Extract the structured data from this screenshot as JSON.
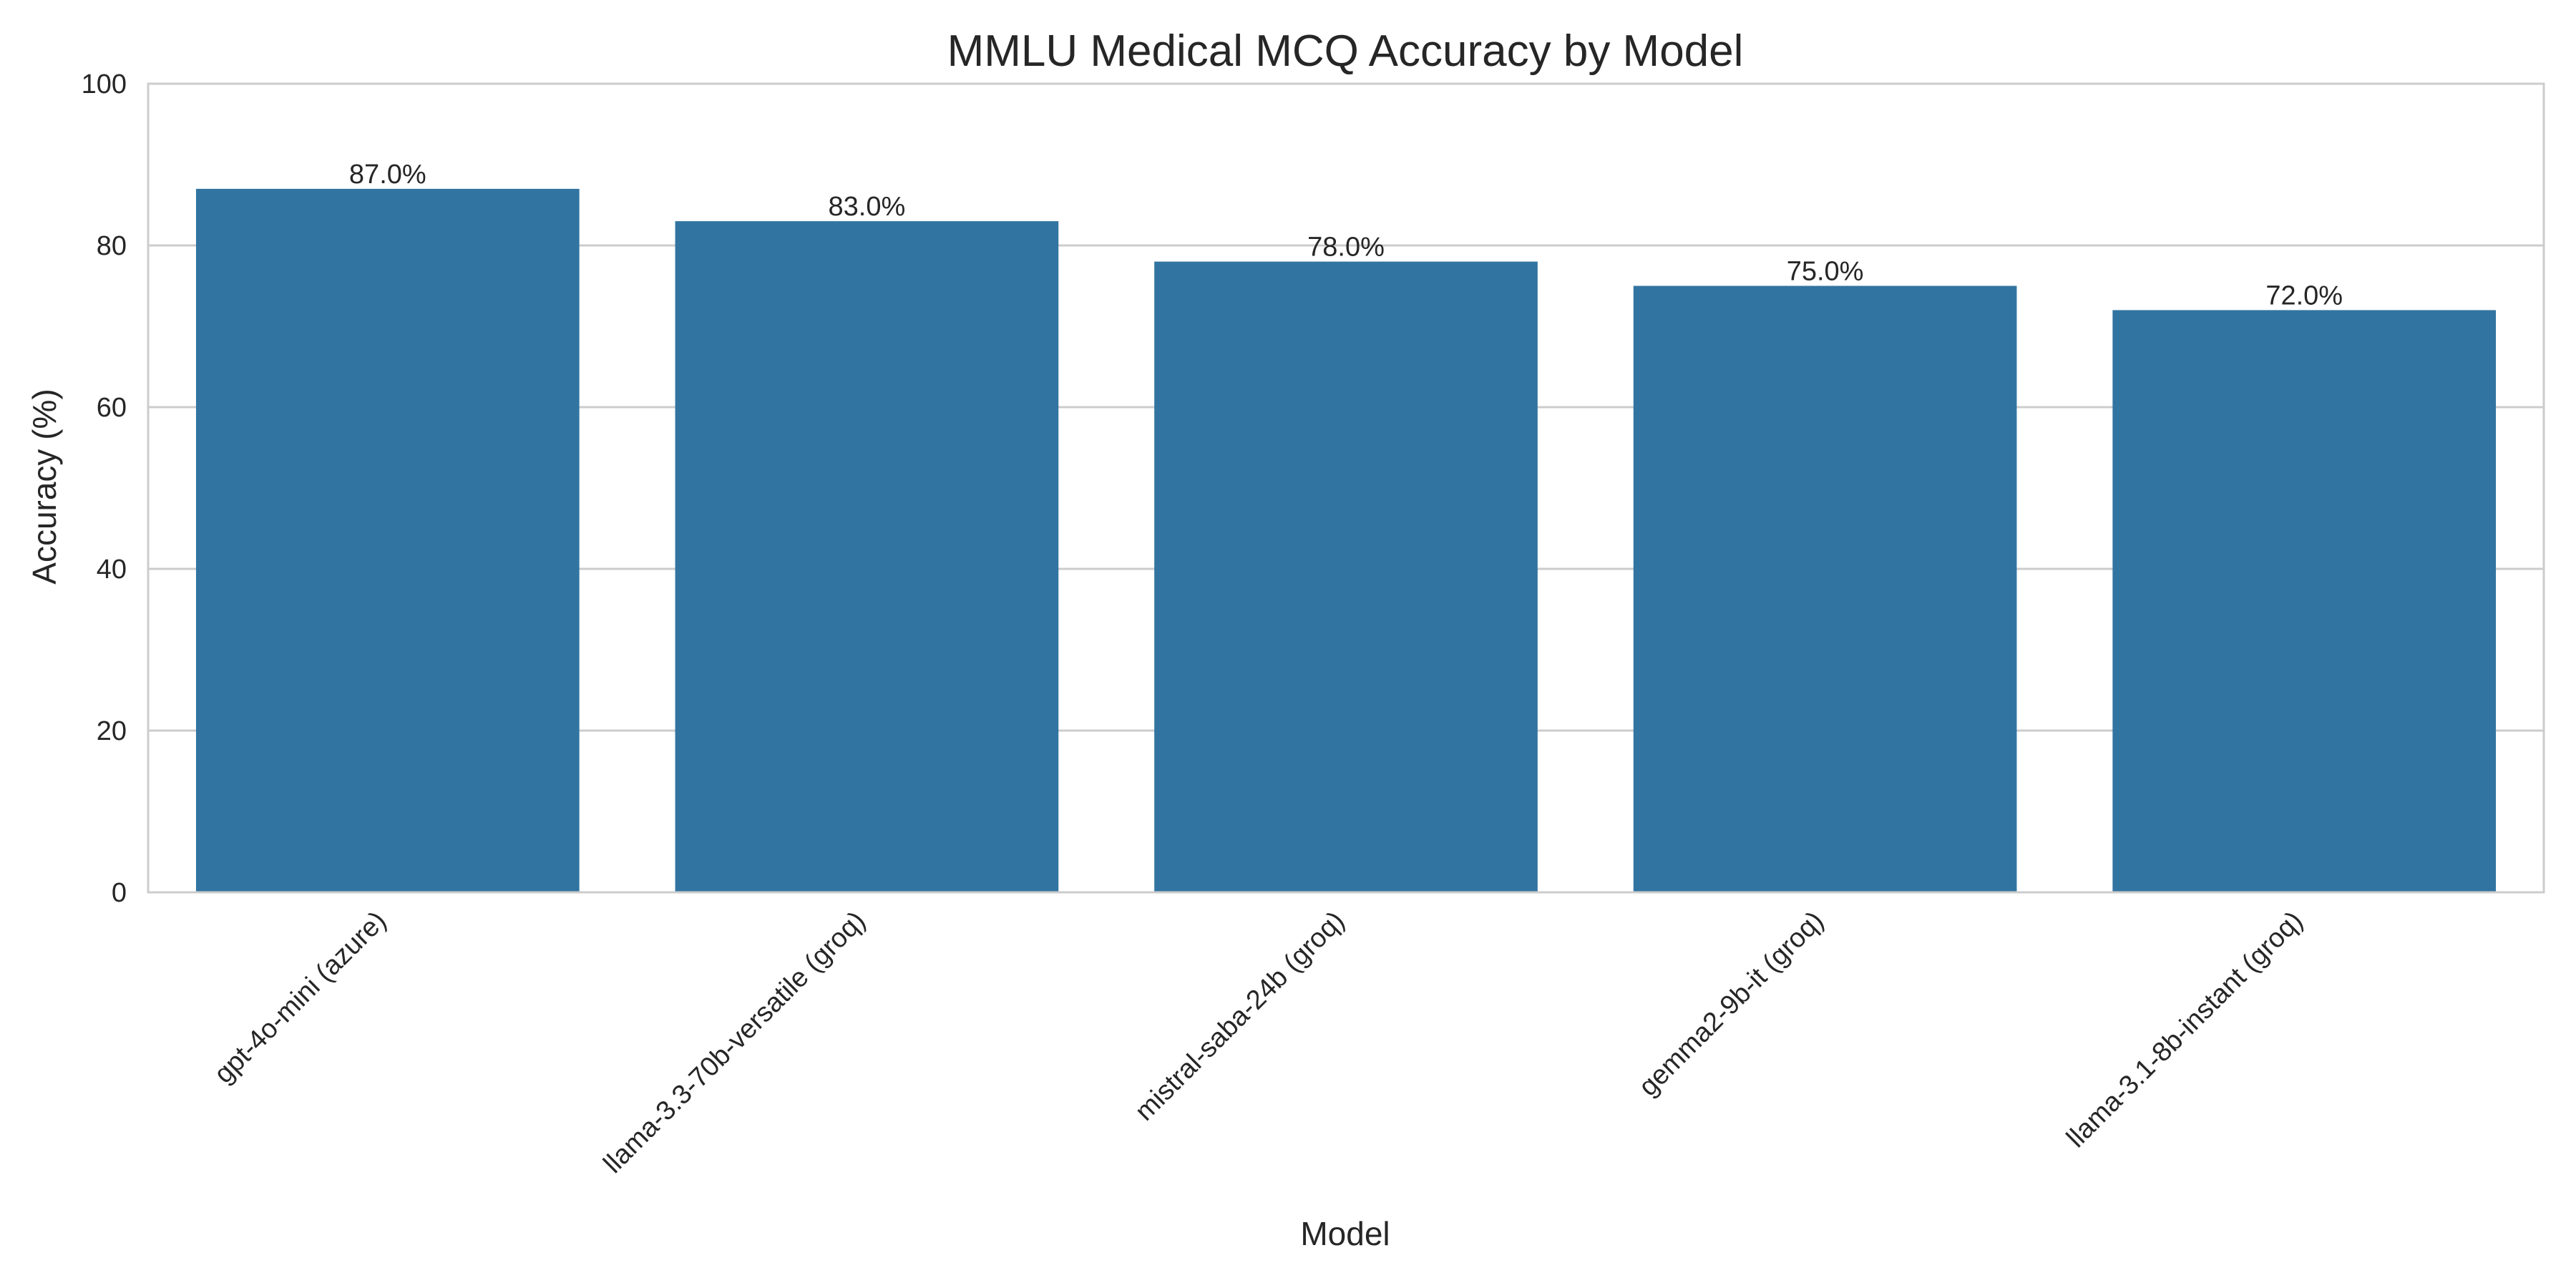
{
  "chart_data": {
    "type": "bar",
    "title": "MMLU Medical MCQ Accuracy by Model",
    "xlabel": "Model",
    "ylabel": "Accuracy (%)",
    "categories": [
      "gpt-4o-mini (azure)",
      "llama-3.3-70b-versatile (groq)",
      "mistral-saba-24b (groq)",
      "gemma2-9b-it (groq)",
      "llama-3.1-8b-instant (groq)"
    ],
    "values": [
      87.0,
      83.0,
      78.0,
      75.0,
      72.0
    ],
    "data_labels": [
      "87.0%",
      "83.0%",
      "78.0%",
      "75.0%",
      "72.0%"
    ],
    "ylim": [
      0,
      100
    ],
    "yticks": [
      0,
      20,
      40,
      60,
      80,
      100
    ],
    "bar_color": "#3274a1",
    "grid": true,
    "legend": false
  }
}
